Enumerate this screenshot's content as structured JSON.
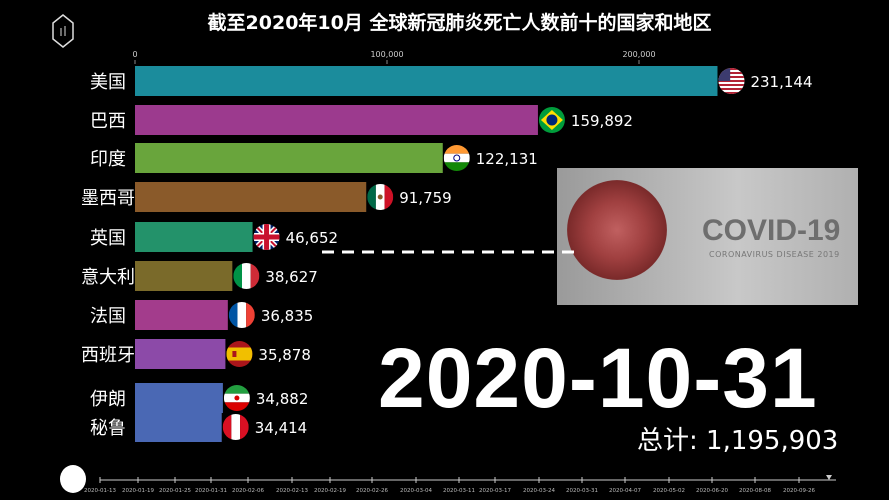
{
  "title": "截至2020年10月 全球新冠肺炎死亡人数前十的国家和地区",
  "chart_data": {
    "type": "bar",
    "orientation": "horizontal",
    "title": "截至2020年10月 全球新冠肺炎死亡人数前十的国家和地区",
    "categories": [
      "美国",
      "巴西",
      "印度",
      "墨西哥",
      "英国",
      "意大利",
      "法国",
      "西班牙",
      "伊朗",
      "秘鲁"
    ],
    "values": [
      231144,
      159892,
      122131,
      91759,
      46652,
      38627,
      36835,
      35878,
      34882,
      34414
    ],
    "value_labels": [
      "231,144",
      "159,892",
      "122,131",
      "91,759",
      "46,652",
      "38,627",
      "36,835",
      "35,878",
      "34,882",
      "34,414"
    ],
    "flags": [
      "us-flag",
      "brazil-flag",
      "india-flag",
      "mexico-flag",
      "uk-flag",
      "italy-flag",
      "france-flag",
      "spain-flag",
      "iran-flag",
      "peru-flag"
    ],
    "colors": [
      "#1b8c9c",
      "#9c3a8e",
      "#69a53c",
      "#8a5a2a",
      "#23926a",
      "#7a6a2a",
      "#a33c8c",
      "#8c4aa8",
      "#4a68b4",
      "#4a68b4"
    ],
    "xlim": [
      0,
      240000
    ],
    "x_ticks": [
      0,
      100000,
      200000
    ],
    "x_tick_labels": [
      "0",
      "100,000",
      "200,000"
    ],
    "grid": false
  },
  "date": "2020-10-31",
  "total": "总计: 1,195,903",
  "covid_image": {
    "title": "COVID-19",
    "subtitle": "CORONAVIRUS DISEASE 2019"
  },
  "timeline": {
    "labels": [
      "2020-01-13",
      "2020-01-19",
      "2020-01-25",
      "2020-01-31",
      "2020-02-06",
      "2020-02-13",
      "2020-02-19",
      "2020-02-26",
      "2020-03-04",
      "2020-03-11",
      "2020-03-17",
      "2020-03-24",
      "2020-03-31",
      "2020-04-07",
      "2020-05-02",
      "2020-06-20",
      "2020-08-08",
      "2020-09-26"
    ],
    "progress": 1.0
  }
}
